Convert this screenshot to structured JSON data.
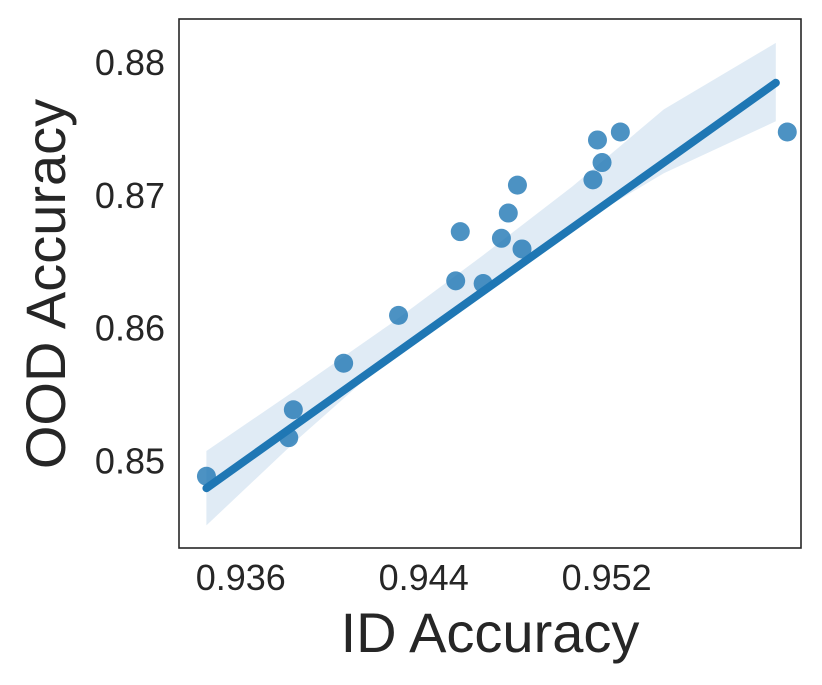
{
  "chart_data": {
    "type": "scatter",
    "xlabel": "ID Accuracy",
    "ylabel": "OOD Accuracy",
    "xlim": [
      0.9333,
      0.9605
    ],
    "ylim": [
      0.8435,
      0.8833
    ],
    "xticks": [
      {
        "value": 0.936,
        "label": "0.936"
      },
      {
        "value": 0.944,
        "label": "0.944"
      },
      {
        "value": 0.952,
        "label": "0.952"
      }
    ],
    "yticks": [
      {
        "value": 0.85,
        "label": "0.85"
      },
      {
        "value": 0.86,
        "label": "0.86"
      },
      {
        "value": 0.87,
        "label": "0.87"
      },
      {
        "value": 0.88,
        "label": "0.88"
      }
    ],
    "grid": false,
    "point_color": "#1f77b4",
    "band_color": "#dbe7f3",
    "points": [
      {
        "x": 0.9345,
        "y": 0.8489
      },
      {
        "x": 0.9381,
        "y": 0.8518
      },
      {
        "x": 0.9383,
        "y": 0.8539
      },
      {
        "x": 0.9405,
        "y": 0.8574
      },
      {
        "x": 0.9429,
        "y": 0.861
      },
      {
        "x": 0.9454,
        "y": 0.8636
      },
      {
        "x": 0.9456,
        "y": 0.8673
      },
      {
        "x": 0.9466,
        "y": 0.8634
      },
      {
        "x": 0.9474,
        "y": 0.8668
      },
      {
        "x": 0.9477,
        "y": 0.8687
      },
      {
        "x": 0.9481,
        "y": 0.8708
      },
      {
        "x": 0.9483,
        "y": 0.866
      },
      {
        "x": 0.9514,
        "y": 0.8712
      },
      {
        "x": 0.9516,
        "y": 0.8742
      },
      {
        "x": 0.9518,
        "y": 0.8725
      },
      {
        "x": 0.9526,
        "y": 0.8748
      },
      {
        "x": 0.9599,
        "y": 0.8748
      }
    ],
    "regression": {
      "x": [
        0.9345,
        0.9594
      ],
      "y": [
        0.848,
        0.8785
      ]
    },
    "confidence_band": {
      "x": [
        0.9345,
        0.9385,
        0.9425,
        0.9465,
        0.9505,
        0.9545,
        0.9594
      ],
      "lower": [
        0.8452,
        0.8517,
        0.8578,
        0.8629,
        0.8676,
        0.8717,
        0.8756
      ],
      "upper": [
        0.8508,
        0.8555,
        0.8603,
        0.8654,
        0.8707,
        0.8765,
        0.8815
      ]
    }
  }
}
